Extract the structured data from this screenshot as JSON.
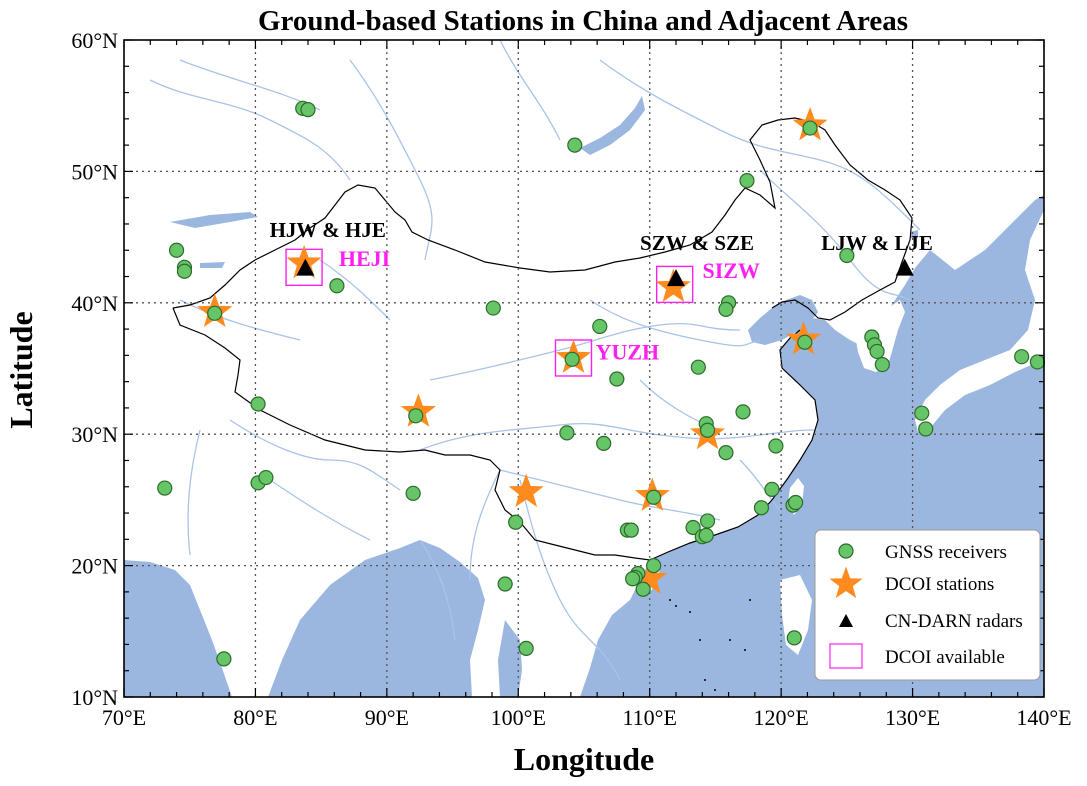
{
  "title": "Ground-based Stations in China and Adjacent Areas",
  "axes": {
    "xlabel": "Longitude",
    "ylabel": "Latitude",
    "lon_range": [
      70,
      140
    ],
    "lat_range": [
      10,
      60
    ],
    "x_ticks": [
      {
        "value": 70,
        "label": "70°E"
      },
      {
        "value": 80,
        "label": "80°E"
      },
      {
        "value": 90,
        "label": "90°E"
      },
      {
        "value": 100,
        "label": "100°E"
      },
      {
        "value": 110,
        "label": "110°E"
      },
      {
        "value": 120,
        "label": "120°E"
      },
      {
        "value": 130,
        "label": "130°E"
      },
      {
        "value": 140,
        "label": "140°E"
      }
    ],
    "y_ticks": [
      {
        "value": 10,
        "label": "10°N"
      },
      {
        "value": 20,
        "label": "20°N"
      },
      {
        "value": 30,
        "label": "30°N"
      },
      {
        "value": 40,
        "label": "40°N"
      },
      {
        "value": 50,
        "label": "50°N"
      },
      {
        "value": 60,
        "label": "60°N"
      }
    ],
    "grid": "dotted",
    "minor_ticks_deg": 2
  },
  "colors": {
    "ocean": "#9bb7df",
    "rivers": "#a9c3e8",
    "gnss_fill": "#66c566",
    "gnss_edge": "#2d6b2d",
    "star": "#ff8b1f",
    "radar": "#000000",
    "dcoi_box": "#ff1ff0",
    "border": "#000000"
  },
  "legend": {
    "placement": "bottom-right",
    "items": [
      {
        "symbol": "green-circle",
        "label": "GNSS receivers"
      },
      {
        "symbol": "orange-star",
        "label": "DCOI stations"
      },
      {
        "symbol": "black-triangle",
        "label": "CN-DARN radars"
      },
      {
        "symbol": "magenta-box",
        "label": "DCOI available"
      }
    ]
  },
  "chart_data": {
    "type": "scatter",
    "title": "Ground-based Stations in China and Adjacent Areas",
    "xlabel": "Longitude",
    "ylabel": "Latitude",
    "xlim": [
      70,
      140
    ],
    "ylim": [
      10,
      60
    ],
    "series": [
      {
        "name": "GNSS receivers",
        "points": [
          [
            83.6,
            54.8
          ],
          [
            84.0,
            54.7
          ],
          [
            104.3,
            52.0
          ],
          [
            122.2,
            53.3
          ],
          [
            117.4,
            49.3
          ],
          [
            74.0,
            44.0
          ],
          [
            74.6,
            42.7
          ],
          [
            74.6,
            42.4
          ],
          [
            76.9,
            39.2
          ],
          [
            86.2,
            41.3
          ],
          [
            98.1,
            39.6
          ],
          [
            106.2,
            38.2
          ],
          [
            116.0,
            40.0
          ],
          [
            115.8,
            39.5
          ],
          [
            125.0,
            43.6
          ],
          [
            121.8,
            37.0
          ],
          [
            126.9,
            37.4
          ],
          [
            127.1,
            36.8
          ],
          [
            127.3,
            36.3
          ],
          [
            127.7,
            35.3
          ],
          [
            138.3,
            35.9
          ],
          [
            139.5,
            35.5
          ],
          [
            104.1,
            35.7
          ],
          [
            107.5,
            34.2
          ],
          [
            113.7,
            35.1
          ],
          [
            80.2,
            32.3
          ],
          [
            92.2,
            31.4
          ],
          [
            103.7,
            30.1
          ],
          [
            106.5,
            29.3
          ],
          [
            114.3,
            30.8
          ],
          [
            114.4,
            30.3
          ],
          [
            117.1,
            31.7
          ],
          [
            115.8,
            28.6
          ],
          [
            119.6,
            29.1
          ],
          [
            130.7,
            31.6
          ],
          [
            131.0,
            30.4
          ],
          [
            73.1,
            25.9
          ],
          [
            80.2,
            26.3
          ],
          [
            80.8,
            26.7
          ],
          [
            92.0,
            25.5
          ],
          [
            110.3,
            25.2
          ],
          [
            99.8,
            23.3
          ],
          [
            108.3,
            22.7
          ],
          [
            108.6,
            22.7
          ],
          [
            113.3,
            22.9
          ],
          [
            114.0,
            22.2
          ],
          [
            114.3,
            22.3
          ],
          [
            114.4,
            23.4
          ],
          [
            118.5,
            24.4
          ],
          [
            119.3,
            25.8
          ],
          [
            120.9,
            24.6
          ],
          [
            121.1,
            24.8
          ],
          [
            109.1,
            19.4
          ],
          [
            108.9,
            19.1
          ],
          [
            108.7,
            19.0
          ],
          [
            109.5,
            18.2
          ],
          [
            110.3,
            20.0
          ],
          [
            99.0,
            18.6
          ],
          [
            77.6,
            12.9
          ],
          [
            100.6,
            13.7
          ],
          [
            121.0,
            14.5
          ]
        ]
      },
      {
        "name": "DCOI stations",
        "points": [
          [
            83.7,
            43.0
          ],
          [
            76.9,
            39.3
          ],
          [
            92.4,
            31.7
          ],
          [
            104.2,
            35.8
          ],
          [
            111.8,
            41.2
          ],
          [
            100.6,
            25.6
          ],
          [
            110.2,
            25.3
          ],
          [
            114.4,
            30.0
          ],
          [
            122.2,
            53.5
          ],
          [
            121.7,
            37.2
          ],
          [
            110.0,
            19.0
          ]
        ]
      },
      {
        "name": "CN-DARN radars",
        "points": [
          [
            83.8,
            42.6
          ],
          [
            112.0,
            41.8
          ],
          [
            129.4,
            42.6
          ]
        ]
      },
      {
        "name": "DCOI available",
        "points": [
          [
            83.7,
            42.7
          ],
          [
            104.2,
            35.8
          ],
          [
            111.9,
            41.4
          ]
        ]
      }
    ],
    "annotations": [
      {
        "text": "HJW & HJE",
        "lon": 85.5,
        "lat": 45.0,
        "color": "black"
      },
      {
        "text": "HEJI",
        "lon": 88.3,
        "lat": 42.8,
        "color": "magenta"
      },
      {
        "text": "SZW & SZE",
        "lon": 113.6,
        "lat": 44.0,
        "color": "black"
      },
      {
        "text": "SIZW",
        "lon": 116.2,
        "lat": 41.9,
        "color": "magenta"
      },
      {
        "text": "LJW & LJE",
        "lon": 127.3,
        "lat": 44.0,
        "color": "black"
      },
      {
        "text": "YUZH",
        "lon": 108.3,
        "lat": 35.7,
        "color": "magenta"
      }
    ]
  }
}
